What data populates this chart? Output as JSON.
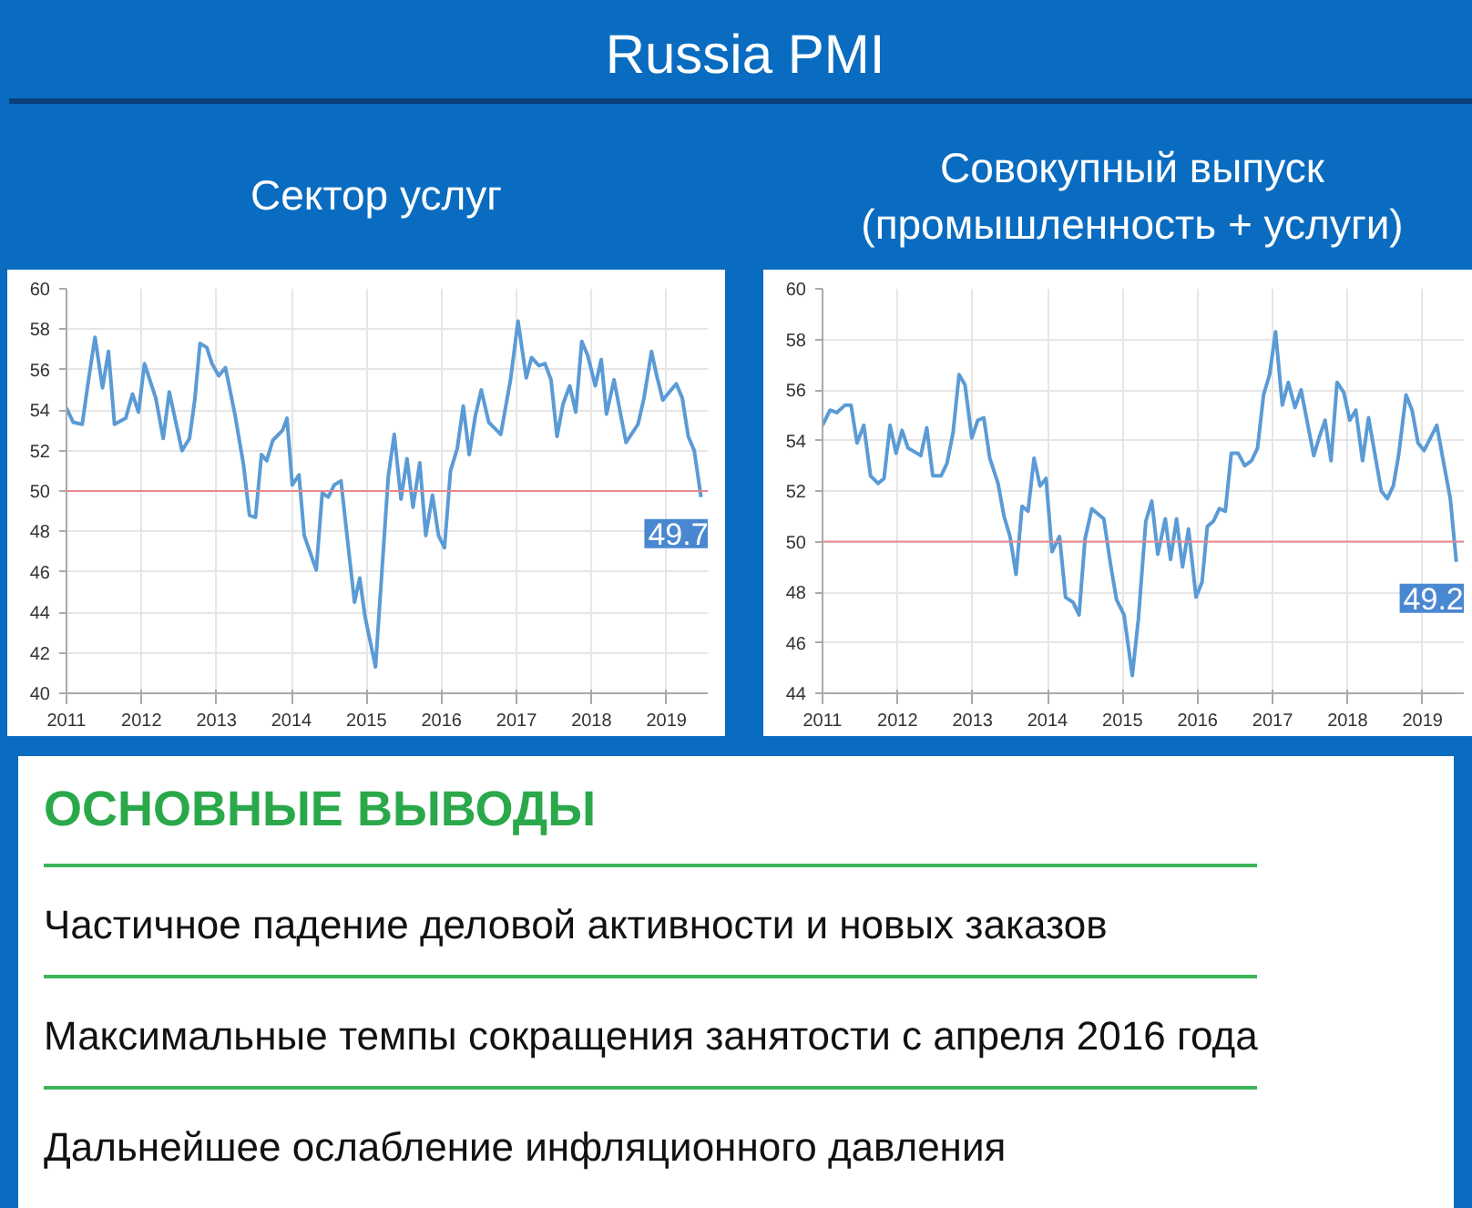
{
  "chart_data": [
    {
      "type": "other",
      "title": "Russia PMI"
    },
    {
      "type": "line",
      "title": "Сектор услуг",
      "xlim": [
        2011,
        2019.55
      ],
      "ylim": [
        40,
        60
      ],
      "xticks": [
        2011,
        2012,
        2013,
        2014,
        2015,
        2016,
        2017,
        2018,
        2019
      ],
      "yticks": [
        40,
        42,
        44,
        46,
        48,
        50,
        52,
        54,
        56,
        58,
        60
      ],
      "grid": true,
      "ref_lines": [
        {
          "axis": "y",
          "value": 50,
          "color": "#e8888f"
        }
      ],
      "annotations": [
        {
          "text": "49.7",
          "x": 2019.46,
          "y": 49.7
        }
      ],
      "series": [
        {
          "color": "#5b9bd5",
          "x": [
            2011.0,
            2011.09,
            2011.21,
            2011.29,
            2011.38,
            2011.48,
            2011.56,
            2011.64,
            2011.79,
            2011.88,
            2011.96,
            2012.04,
            2012.19,
            2012.29,
            2012.37,
            2012.54,
            2012.64,
            2012.71,
            2012.78,
            2012.87,
            2012.94,
            2013.03,
            2013.12,
            2013.25,
            2013.36,
            2013.44,
            2013.52,
            2013.6,
            2013.67,
            2013.75,
            2013.88,
            2013.94,
            2014.01,
            2014.1,
            2014.17,
            2014.33,
            2014.41,
            2014.49,
            2014.57,
            2014.66,
            2014.74,
            2014.84,
            2014.91,
            2014.98,
            2015.12,
            2015.29,
            2015.37,
            2015.46,
            2015.54,
            2015.62,
            2015.71,
            2015.79,
            2015.88,
            2015.96,
            2016.04,
            2016.12,
            2016.21,
            2016.29,
            2016.37,
            2016.45,
            2016.53,
            2016.63,
            2016.79,
            2016.92,
            2017.02,
            2017.13,
            2017.2,
            2017.3,
            2017.38,
            2017.46,
            2017.54,
            2017.62,
            2017.71,
            2017.79,
            2017.87,
            2017.95,
            2018.05,
            2018.13,
            2018.2,
            2018.3,
            2018.46,
            2018.62,
            2018.7,
            2018.8,
            2018.87,
            2018.95,
            2019.13,
            2019.21,
            2019.29,
            2019.37,
            2019.46
          ],
          "values": [
            54.1,
            53.4,
            53.3,
            55.4,
            57.6,
            55.1,
            56.9,
            53.3,
            53.6,
            54.8,
            53.9,
            56.3,
            54.6,
            52.6,
            54.9,
            52.0,
            52.6,
            54.5,
            57.3,
            57.1,
            56.3,
            55.7,
            56.1,
            53.7,
            51.3,
            48.8,
            48.7,
            51.8,
            51.5,
            52.5,
            53.0,
            53.6,
            50.3,
            50.8,
            47.8,
            46.1,
            49.9,
            49.7,
            50.3,
            50.5,
            47.8,
            44.5,
            45.7,
            43.8,
            41.3,
            50.7,
            52.8,
            49.6,
            51.6,
            49.2,
            51.4,
            47.8,
            49.8,
            47.8,
            47.2,
            51.0,
            52.1,
            54.2,
            51.8,
            53.7,
            55.0,
            53.4,
            52.8,
            55.5,
            58.4,
            55.6,
            56.6,
            56.2,
            56.3,
            55.5,
            52.7,
            54.3,
            55.2,
            53.9,
            57.4,
            56.7,
            55.2,
            56.5,
            53.8,
            55.5,
            52.4,
            53.3,
            54.6,
            56.9,
            55.7,
            54.5,
            55.3,
            54.6,
            52.7,
            52.0,
            49.7
          ]
        }
      ]
    },
    {
      "type": "line",
      "title": "Совокупный выпуск\n(промышленность + услуги)",
      "xlim": [
        2011,
        2019.55
      ],
      "ylim": [
        44,
        60
      ],
      "xticks": [
        2011,
        2012,
        2013,
        2014,
        2015,
        2016,
        2017,
        2018,
        2019
      ],
      "yticks": [
        44,
        46,
        48,
        50,
        52,
        54,
        56,
        58,
        60
      ],
      "grid": true,
      "ref_lines": [
        {
          "axis": "y",
          "value": 50,
          "color": "#e8888f"
        }
      ],
      "annotations": [
        {
          "text": "49.2",
          "x": 2019.45,
          "y": 49.2
        }
      ],
      "series": [
        {
          "color": "#5b9bd5",
          "x": [
            2011.0,
            2011.1,
            2011.19,
            2011.3,
            2011.38,
            2011.46,
            2011.55,
            2011.64,
            2011.74,
            2011.82,
            2011.9,
            2011.98,
            2012.06,
            2012.14,
            2012.31,
            2012.39,
            2012.47,
            2012.58,
            2012.66,
            2012.74,
            2012.82,
            2012.9,
            2012.99,
            2013.07,
            2013.15,
            2013.23,
            2013.34,
            2013.42,
            2013.5,
            2013.58,
            2013.66,
            2013.74,
            2013.82,
            2013.9,
            2013.98,
            2014.06,
            2014.16,
            2014.24,
            2014.34,
            2014.42,
            2014.5,
            2014.59,
            2014.75,
            2014.84,
            2014.92,
            2015.02,
            2015.13,
            2015.21,
            2015.31,
            2015.39,
            2015.47,
            2015.57,
            2015.64,
            2015.72,
            2015.8,
            2015.88,
            2015.98,
            2016.06,
            2016.13,
            2016.21,
            2016.29,
            2016.37,
            2016.45,
            2016.54,
            2016.63,
            2016.72,
            2016.8,
            2016.88,
            2016.96,
            2017.04,
            2017.13,
            2017.21,
            2017.3,
            2017.38,
            2017.55,
            2017.62,
            2017.7,
            2017.78,
            2017.86,
            2017.95,
            2018.03,
            2018.11,
            2018.2,
            2018.28,
            2018.45,
            2018.53,
            2018.61,
            2018.68,
            2018.78,
            2018.86,
            2018.94,
            2019.02,
            2019.19,
            2019.27,
            2019.37,
            2019.45
          ],
          "values": [
            54.6,
            55.2,
            55.1,
            55.4,
            55.4,
            53.9,
            54.6,
            52.6,
            52.3,
            52.5,
            54.6,
            53.5,
            54.4,
            53.7,
            53.4,
            54.5,
            52.6,
            52.6,
            53.1,
            54.3,
            56.6,
            56.2,
            54.1,
            54.8,
            54.9,
            53.3,
            52.3,
            51.0,
            50.2,
            48.7,
            51.4,
            51.2,
            53.3,
            52.2,
            52.5,
            49.6,
            50.2,
            47.8,
            47.6,
            47.1,
            50.1,
            51.3,
            50.9,
            49.1,
            47.7,
            47.1,
            44.7,
            46.9,
            50.8,
            51.6,
            49.5,
            50.9,
            49.3,
            50.9,
            49.0,
            50.5,
            47.8,
            48.4,
            50.6,
            50.8,
            51.3,
            51.2,
            53.5,
            53.5,
            53.0,
            53.2,
            53.7,
            55.8,
            56.6,
            58.3,
            55.4,
            56.3,
            55.3,
            56.0,
            53.4,
            54.1,
            54.8,
            53.2,
            56.3,
            55.9,
            54.8,
            55.2,
            53.2,
            54.9,
            52.0,
            51.7,
            52.2,
            53.4,
            55.8,
            55.2,
            53.9,
            53.6,
            54.6,
            53.3,
            51.7,
            49.2
          ]
        }
      ]
    },
    {
      "type": "other",
      "title": "ОСНОВНЫЕ ВЫВОДЫ",
      "annotations": [
        "Частичное падение деловой активности и новых заказов",
        "Максимальные темпы сокращения занятости с апреля 2016 года",
        "Дальнейшее ослабление инфляционного давления"
      ]
    }
  ]
}
